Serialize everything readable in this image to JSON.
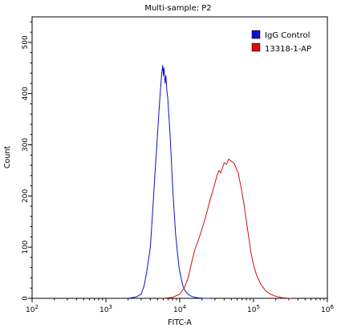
{
  "chart_data": {
    "type": "line",
    "title": "Multi-sample: P2",
    "xlabel": "FITC-A",
    "ylabel": "Count",
    "x_scale": "log",
    "xlim": [
      100,
      1000000
    ],
    "ylim": [
      0,
      550
    ],
    "x_ticks": [
      {
        "value": 100,
        "base": "10",
        "exp": "2"
      },
      {
        "value": 1000,
        "base": "10",
        "exp": "3"
      },
      {
        "value": 10000,
        "base": "10",
        "exp": "4"
      },
      {
        "value": 100000,
        "base": "10",
        "exp": "5"
      },
      {
        "value": 1000000,
        "base": "10",
        "exp": "6"
      }
    ],
    "y_ticks": [
      0,
      100,
      200,
      300,
      400,
      500
    ],
    "grid": false,
    "legend_position": "top-right",
    "series": [
      {
        "name": "IgG Control",
        "color": "#1010d0",
        "x": [
          2000,
          2600,
          3000,
          3300,
          3600,
          4000,
          4300,
          4600,
          4900,
          5200,
          5500,
          5700,
          5900,
          6000,
          6100,
          6200,
          6350,
          6500,
          6700,
          6900,
          7100,
          7400,
          7700,
          8000,
          8400,
          8800,
          9300,
          9800,
          10400,
          11000,
          11800,
          12600,
          13500,
          14500,
          16000,
          18000,
          21000,
          25000
        ],
        "values": [
          0,
          3,
          8,
          25,
          55,
          100,
          170,
          240,
          300,
          360,
          410,
          440,
          455,
          435,
          450,
          440,
          420,
          435,
          405,
          390,
          360,
          320,
          270,
          220,
          170,
          125,
          90,
          60,
          40,
          25,
          15,
          10,
          6,
          4,
          2,
          1,
          0,
          0
        ]
      },
      {
        "name": "13318-1-AP",
        "color": "#d01010",
        "x": [
          6000,
          8000,
          10000,
          11500,
          13000,
          14500,
          16000,
          18000,
          20000,
          22000,
          24000,
          26000,
          28000,
          30000,
          32000,
          34000,
          36000,
          38000,
          40000,
          43000,
          46000,
          50000,
          54000,
          58000,
          62000,
          66000,
          70000,
          75000,
          80000,
          86000,
          92000,
          100000,
          110000,
          125000,
          145000,
          170000,
          200000,
          250000,
          320000
        ],
        "values": [
          0,
          2,
          8,
          20,
          40,
          70,
          95,
          115,
          135,
          155,
          175,
          195,
          210,
          225,
          240,
          250,
          245,
          255,
          265,
          262,
          272,
          268,
          265,
          255,
          245,
          225,
          205,
          180,
          150,
          120,
          90,
          65,
          45,
          28,
          15,
          8,
          4,
          1,
          0
        ]
      }
    ]
  }
}
